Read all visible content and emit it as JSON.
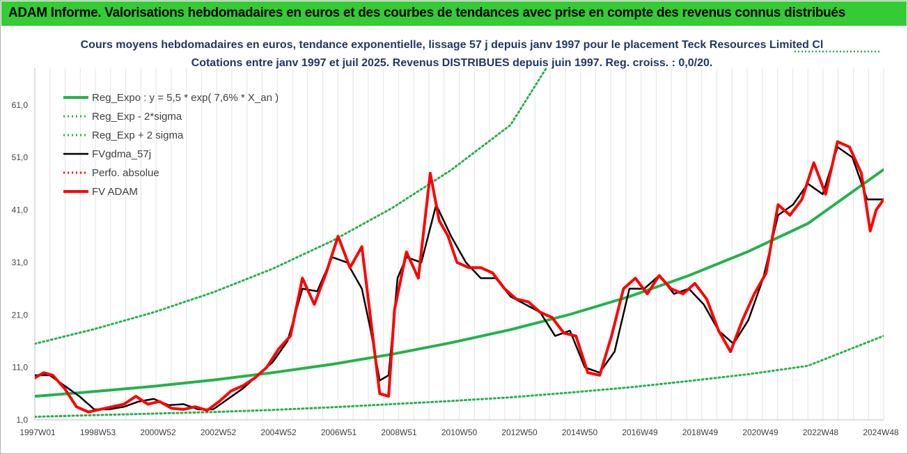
{
  "banner": {
    "title": "ADAM Informe. Valorisations hebdomadaires en euros et des courbes de tendances avec prise en compte des revenus connus distribués",
    "color": "#33cc33"
  },
  "chart_data": {
    "type": "line",
    "title": "Cours moyens hebdomadaires en euros, tendance exponentielle, lissage 57 j depuis janv 1997 pour le placement Teck Resources Limited Cl",
    "subtitle": "Cotations entre janv 1997 et juil 2025. Revenus DISTRIBUES depuis juin 1997. Reg. croiss. : 0,0/20.",
    "xlabel": "",
    "ylabel": "",
    "ylim": [
      1.0,
      68.0
    ],
    "yticks": [
      "1,0",
      "11,0",
      "21,0",
      "31,0",
      "41,0",
      "51,0",
      "61,0"
    ],
    "xticks": [
      "1997W01",
      "1998W53",
      "2000W52",
      "2002W52",
      "2004W52",
      "2006W51",
      "2008W51",
      "2010W50",
      "2012W50",
      "2014W50",
      "2016W49",
      "2018W49",
      "2020W49",
      "2022W48",
      "2024W48"
    ],
    "xrange_years": [
      1997.0,
      2025.55
    ],
    "grid": "vertical",
    "legend_placement": "top-left",
    "series": [
      {
        "name": "Reg_Expo : y = 5,5 * exp( 7,6% *  X_an )",
        "color": "#22b34a",
        "style": "solid-thick",
        "x": [
          1997,
          1999,
          2001,
          2003,
          2005,
          2007,
          2009,
          2011,
          2013,
          2015,
          2017,
          2019,
          2021,
          2023,
          2025.55
        ],
        "y": [
          5.5,
          6.4,
          7.4,
          8.6,
          10.0,
          11.6,
          13.5,
          15.7,
          18.2,
          21.1,
          24.5,
          28.5,
          33.1,
          38.4,
          48.7
        ]
      },
      {
        "name": "Reg_Exp - 2*sigma",
        "color": "#22b34a",
        "style": "dotted",
        "x": [
          1997,
          1999,
          2001,
          2003,
          2005,
          2007,
          2009,
          2011,
          2013,
          2015,
          2017,
          2019,
          2021,
          2023,
          2025.55
        ],
        "y": [
          1.6,
          1.9,
          2.2,
          2.5,
          2.9,
          3.4,
          4.0,
          4.6,
          5.3,
          6.2,
          7.2,
          8.4,
          9.7,
          11.3,
          17.0
        ]
      },
      {
        "name": "Reg_Exp + 2 sigma",
        "color": "#22b34a",
        "style": "dotted",
        "x": [
          1997,
          1999,
          2001,
          2003,
          2005,
          2007,
          2009,
          2011,
          2013,
          2014.2
        ],
        "y": [
          15.5,
          18.3,
          21.5,
          25.3,
          29.8,
          35.1,
          41.3,
          48.6,
          57.2,
          68.0
        ]
      },
      {
        "name": "FVgdma_57j",
        "color": "#000000",
        "style": "solid",
        "x": [
          1997,
          1997.5,
          1998,
          1998.5,
          1999,
          1999.5,
          2000,
          2000.5,
          2001,
          2001.5,
          2002,
          2002.5,
          2003,
          2003.5,
          2004,
          2004.5,
          2005,
          2005.5,
          2006,
          2006.5,
          2007,
          2007.5,
          2008,
          2008.3,
          2008.6,
          2008.9,
          2009.2,
          2009.5,
          2010,
          2010.5,
          2011,
          2011.5,
          2012,
          2012.5,
          2013,
          2013.5,
          2014,
          2014.5,
          2015,
          2015.5,
          2016,
          2016.5,
          2017,
          2017.5,
          2018,
          2018.5,
          2019,
          2019.5,
          2020,
          2020.5,
          2021,
          2021.5,
          2022,
          2022.5,
          2023,
          2023.5,
          2024,
          2024.5,
          2025,
          2025.55
        ],
        "y": [
          9.5,
          9.5,
          7.5,
          5.5,
          3.0,
          3.0,
          3.5,
          4.5,
          5.0,
          3.8,
          4.0,
          3.0,
          3.0,
          5.0,
          7.0,
          9.5,
          12.0,
          16.0,
          26.0,
          25.5,
          32.0,
          31.0,
          26.0,
          18.0,
          8.5,
          9.5,
          28.0,
          32.0,
          31.0,
          42.0,
          36.0,
          31.0,
          28.0,
          28.0,
          24.5,
          23.0,
          21.5,
          17.0,
          18.0,
          11.0,
          10.0,
          14.0,
          26.0,
          26.0,
          28.5,
          25.0,
          26.0,
          23.0,
          18.0,
          15.5,
          20.0,
          28.0,
          40.0,
          42.0,
          46.0,
          44.0,
          53.0,
          51.0,
          43.0,
          43.0
        ]
      },
      {
        "name": "Perfo. absolue",
        "color": "#ff0000",
        "style": "dotted",
        "x": [],
        "y": []
      },
      {
        "name": "FV ADAM",
        "color": "#ff0000",
        "style": "solid-thick",
        "x": [
          1997,
          1997.3,
          1997.6,
          1998,
          1998.4,
          1998.8,
          1999.2,
          1999.6,
          2000.0,
          2000.4,
          2000.8,
          2001.2,
          2001.6,
          2002.0,
          2002.4,
          2002.8,
          2003.2,
          2003.6,
          2004.0,
          2004.4,
          2004.8,
          2005.2,
          2005.6,
          2006.0,
          2006.4,
          2006.8,
          2007.2,
          2007.6,
          2008.0,
          2008.3,
          2008.6,
          2008.9,
          2009.1,
          2009.5,
          2009.9,
          2010.3,
          2010.6,
          2010.9,
          2011.2,
          2011.6,
          2012.0,
          2012.4,
          2012.8,
          2013.2,
          2013.6,
          2014.0,
          2014.4,
          2014.8,
          2015.2,
          2015.6,
          2016.0,
          2016.4,
          2016.8,
          2017.2,
          2017.6,
          2018.0,
          2018.4,
          2018.8,
          2019.2,
          2019.6,
          2020.0,
          2020.4,
          2020.8,
          2021.2,
          2021.6,
          2022.0,
          2022.4,
          2022.8,
          2023.2,
          2023.6,
          2024.0,
          2024.4,
          2024.8,
          2025.1,
          2025.3,
          2025.55
        ],
        "y": [
          9.0,
          10.0,
          9.5,
          7.0,
          3.5,
          2.5,
          3.0,
          3.5,
          4.0,
          5.5,
          4.0,
          4.5,
          3.2,
          3.0,
          3.5,
          2.8,
          4.5,
          6.5,
          7.5,
          9.0,
          11.0,
          14.5,
          17.0,
          28.0,
          23.0,
          29.0,
          36.0,
          30.0,
          34.0,
          20.0,
          6.0,
          5.5,
          22.0,
          33.0,
          28.0,
          48.0,
          39.0,
          36.0,
          31.0,
          30.0,
          30.0,
          29.0,
          26.0,
          24.0,
          23.5,
          21.5,
          20.5,
          17.5,
          17.0,
          10.0,
          9.5,
          17.0,
          26.0,
          28.0,
          25.0,
          28.5,
          26.0,
          25.0,
          27.0,
          24.0,
          18.0,
          14.0,
          20.0,
          25.0,
          29.0,
          42.0,
          40.0,
          43.0,
          50.0,
          44.0,
          54.0,
          53.0,
          48.0,
          37.0,
          41.0,
          43.0
        ]
      }
    ]
  }
}
